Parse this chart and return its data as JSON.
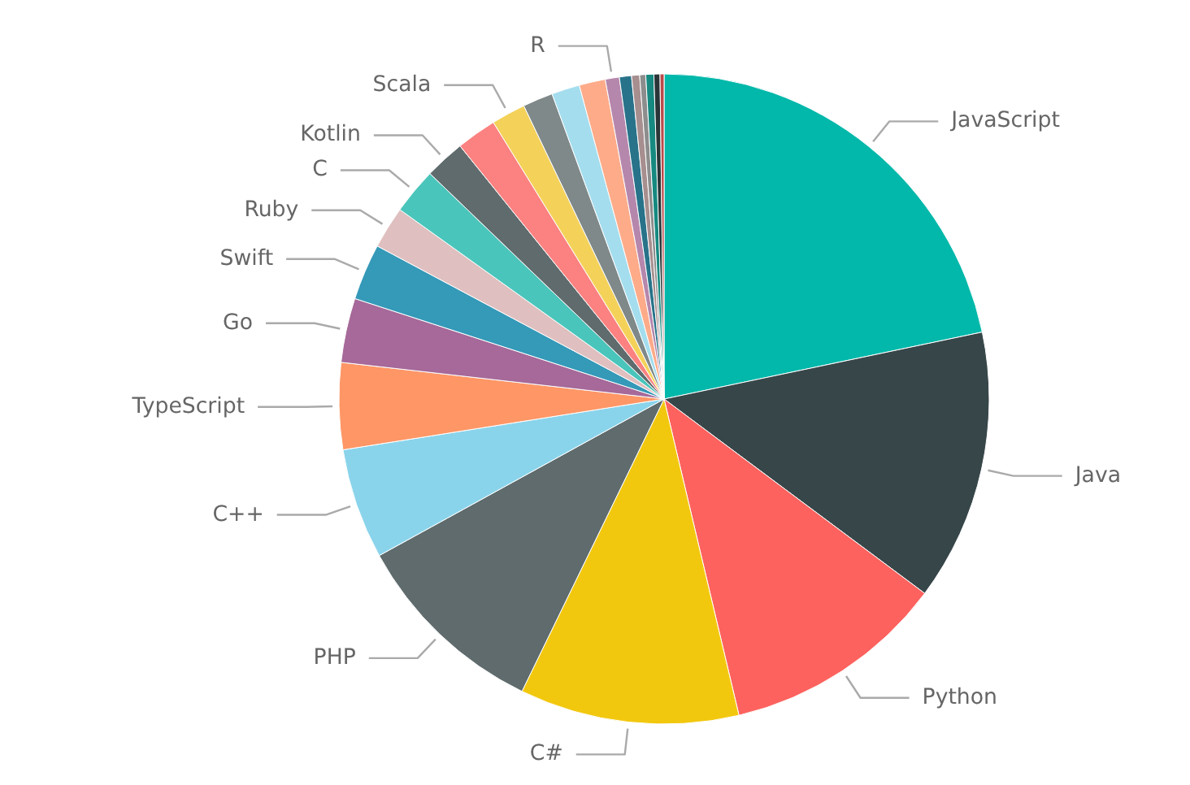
{
  "chart_data": {
    "type": "pie",
    "categories": [
      "JavaScript",
      "Java",
      "Python",
      "C#",
      "PHP",
      "C++",
      "TypeScript",
      "Go",
      "Swift",
      "Ruby",
      "C",
      "Kotlin",
      null,
      "Scala",
      null,
      null,
      null,
      "R",
      null,
      null,
      null,
      null,
      null,
      null
    ],
    "values": [
      21.7,
      13.5,
      11.1,
      10.9,
      9.8,
      5.5,
      4.3,
      3.2,
      2.8,
      2.1,
      2.3,
      2.0,
      2.0,
      1.7,
      1.5,
      1.4,
      1.3,
      0.7,
      0.6,
      0.4,
      0.3,
      0.4,
      0.3,
      0.2
    ],
    "colors": [
      "#01b8aa",
      "#374649",
      "#fd625e",
      "#f2c80f",
      "#5f6b6d",
      "#8ad4eb",
      "#fe9666",
      "#a66999",
      "#3599b8",
      "#dfbfbf",
      "#4ac5bb",
      "#5f6b6d",
      "#fb8281",
      "#f4d25a",
      "#7f898a",
      "#a4ddee",
      "#fdab89",
      "#b687ac",
      "#28738a",
      "#a78f8f",
      "#8d8d8d",
      "#168980",
      "#293537",
      "#bb4a4a"
    ]
  }
}
